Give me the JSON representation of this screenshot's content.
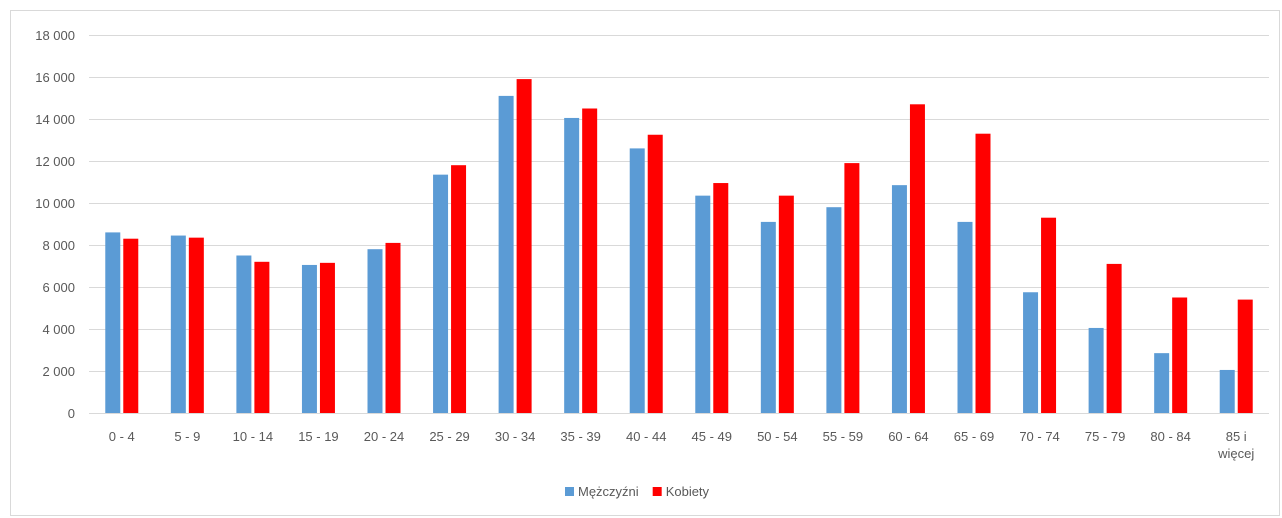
{
  "chart_data": {
    "type": "bar",
    "title": "",
    "xlabel": "",
    "ylabel": "",
    "ylim": [
      0,
      18000
    ],
    "yticks": [
      0,
      2000,
      4000,
      6000,
      8000,
      10000,
      12000,
      14000,
      16000,
      18000
    ],
    "ytick_labels": [
      "0",
      "2 000",
      "4 000",
      "6 000",
      "8 000",
      "10 000",
      "12 000",
      "14 000",
      "16 000",
      "18 000"
    ],
    "grid": true,
    "legend_position": "bottom",
    "categories": [
      "0 - 4",
      "5 - 9",
      "10 - 14",
      "15 - 19",
      "20 - 24",
      "25 - 29",
      "30 - 34",
      "35 - 39",
      "40 - 44",
      "45 - 49",
      "50 - 54",
      "55 - 59",
      "60 - 64",
      "65 - 69",
      "70 - 74",
      "75 - 79",
      "80 - 84",
      "85 i\nwięcej"
    ],
    "series": [
      {
        "name": "Mężczyźni",
        "color": "#5b9bd5",
        "values": [
          8600,
          8450,
          7500,
          7050,
          7800,
          11350,
          15100,
          14050,
          12600,
          10350,
          9100,
          9800,
          10850,
          9100,
          5750,
          4050,
          2850,
          2050
        ]
      },
      {
        "name": "Kobiety",
        "color": "#ff0000",
        "values": [
          8300,
          8350,
          7200,
          7150,
          8100,
          11800,
          15900,
          14500,
          13250,
          10950,
          10350,
          11900,
          14700,
          13300,
          9300,
          7100,
          5500,
          5400
        ]
      }
    ]
  }
}
